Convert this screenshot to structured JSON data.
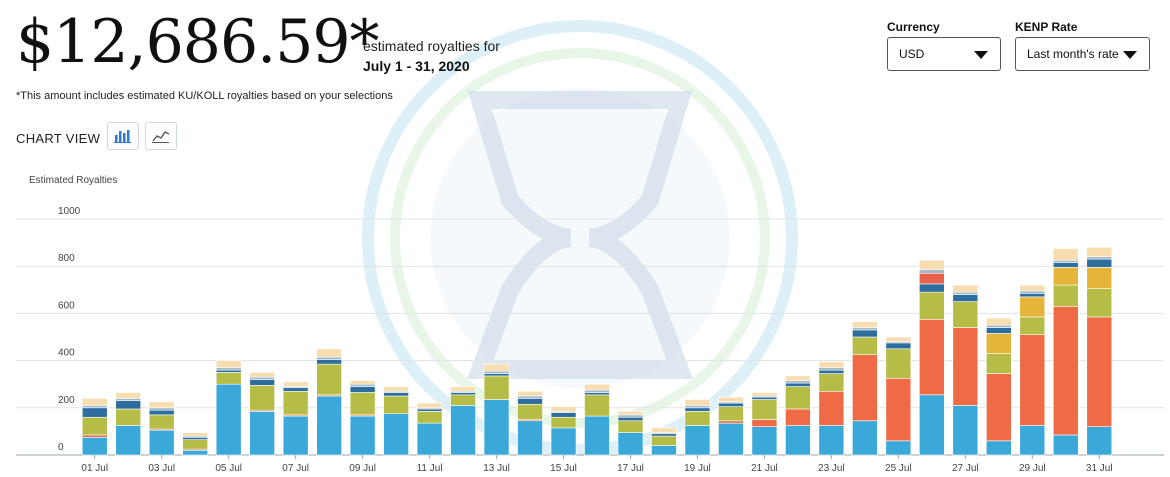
{
  "header": {
    "amount": "$12,686.59*",
    "estimate_label": "estimated royalties for",
    "period": "July 1 - 31, 2020",
    "footnote": "*This amount includes estimated KU/KOLL royalties based on your selections"
  },
  "controls": {
    "currency": {
      "label": "Currency",
      "value": "USD"
    },
    "kenp_rate": {
      "label": "KENP Rate",
      "value": "Last month's rate"
    },
    "chart_view_label": "CHART VIEW",
    "view_buttons": [
      {
        "icon": "bar-chart-icon"
      },
      {
        "icon": "line-chart-icon"
      }
    ]
  },
  "chart_data": {
    "type": "bar",
    "stacked": true,
    "ylabel": "Estimated Royalties",
    "ylim": [
      0,
      1000
    ],
    "yticks": [
      0,
      200,
      400,
      600,
      800,
      1000
    ],
    "grid": true,
    "categories": [
      "01 Jul",
      "02 Jul",
      "03 Jul",
      "04 Jul",
      "05 Jul",
      "06 Jul",
      "07 Jul",
      "08 Jul",
      "09 Jul",
      "10 Jul",
      "11 Jul",
      "12 Jul",
      "13 Jul",
      "14 Jul",
      "15 Jul",
      "16 Jul",
      "17 Jul",
      "18 Jul",
      "19 Jul",
      "20 Jul",
      "21 Jul",
      "22 Jul",
      "23 Jul",
      "24 Jul",
      "25 Jul",
      "26 Jul",
      "27 Jul",
      "28 Jul",
      "29 Jul",
      "30 Jul",
      "31 Jul"
    ],
    "xtick_labels": [
      "01 Jul",
      "",
      "03 Jul",
      "",
      "05 Jul",
      "",
      "07 Jul",
      "",
      "09 Jul",
      "",
      "11 Jul",
      "",
      "13 Jul",
      "",
      "15 Jul",
      "",
      "17 Jul",
      "",
      "19 Jul",
      "",
      "21 Jul",
      "",
      "23 Jul",
      "",
      "25 Jul",
      "",
      "27 Jul",
      "",
      "29 Jul",
      "",
      "31 Jul"
    ],
    "series": [
      {
        "color": "#3aa8d8",
        "values": [
          75,
          125,
          105,
          20,
          300,
          185,
          165,
          250,
          165,
          175,
          135,
          210,
          235,
          145,
          115,
          165,
          95,
          40,
          125,
          135,
          120,
          125,
          125,
          145,
          60,
          255,
          210,
          60,
          125,
          85,
          120
        ]
      },
      {
        "color": "#ee6b45",
        "values": [
          10,
          0,
          5,
          5,
          0,
          5,
          5,
          5,
          5,
          0,
          0,
          0,
          0,
          5,
          0,
          0,
          0,
          0,
          0,
          10,
          30,
          70,
          145,
          280,
          265,
          320,
          330,
          285,
          385,
          545,
          465
        ]
      },
      {
        "color": "#b5bd46",
        "values": [
          75,
          70,
          60,
          40,
          50,
          105,
          100,
          130,
          95,
          75,
          50,
          45,
          100,
          65,
          45,
          90,
          50,
          40,
          60,
          60,
          85,
          95,
          75,
          75,
          125,
          115,
          110,
          85,
          75,
          90,
          120
        ]
      },
      {
        "color": "#e5b53a",
        "values": [
          0,
          0,
          0,
          0,
          0,
          0,
          0,
          0,
          0,
          0,
          0,
          0,
          0,
          0,
          0,
          0,
          0,
          0,
          0,
          0,
          0,
          0,
          0,
          0,
          0,
          0,
          0,
          85,
          85,
          75,
          90
        ]
      },
      {
        "color": "#2d6e9e",
        "values": [
          40,
          35,
          20,
          10,
          10,
          25,
          15,
          20,
          25,
          15,
          10,
          10,
          10,
          25,
          20,
          10,
          15,
          10,
          15,
          15,
          10,
          15,
          15,
          30,
          25,
          35,
          30,
          25,
          15,
          20,
          35
        ]
      },
      {
        "color": "#e6624a",
        "values": [
          0,
          0,
          0,
          0,
          0,
          0,
          0,
          0,
          0,
          0,
          0,
          0,
          0,
          0,
          0,
          0,
          0,
          0,
          0,
          0,
          0,
          0,
          0,
          0,
          0,
          45,
          0,
          0,
          0,
          0,
          0
        ]
      },
      {
        "color": "#a0b8c8",
        "values": [
          10,
          10,
          10,
          5,
          10,
          10,
          5,
          10,
          10,
          5,
          5,
          5,
          10,
          10,
          5,
          10,
          10,
          5,
          10,
          5,
          5,
          10,
          10,
          10,
          5,
          15,
          10,
          10,
          10,
          10,
          10
        ]
      },
      {
        "color": "#f8ddb0",
        "values": [
          30,
          25,
          25,
          15,
          30,
          20,
          20,
          35,
          15,
          20,
          20,
          20,
          30,
          20,
          20,
          25,
          15,
          20,
          25,
          20,
          15,
          20,
          25,
          25,
          20,
          40,
          30,
          30,
          25,
          50,
          40
        ]
      }
    ]
  }
}
